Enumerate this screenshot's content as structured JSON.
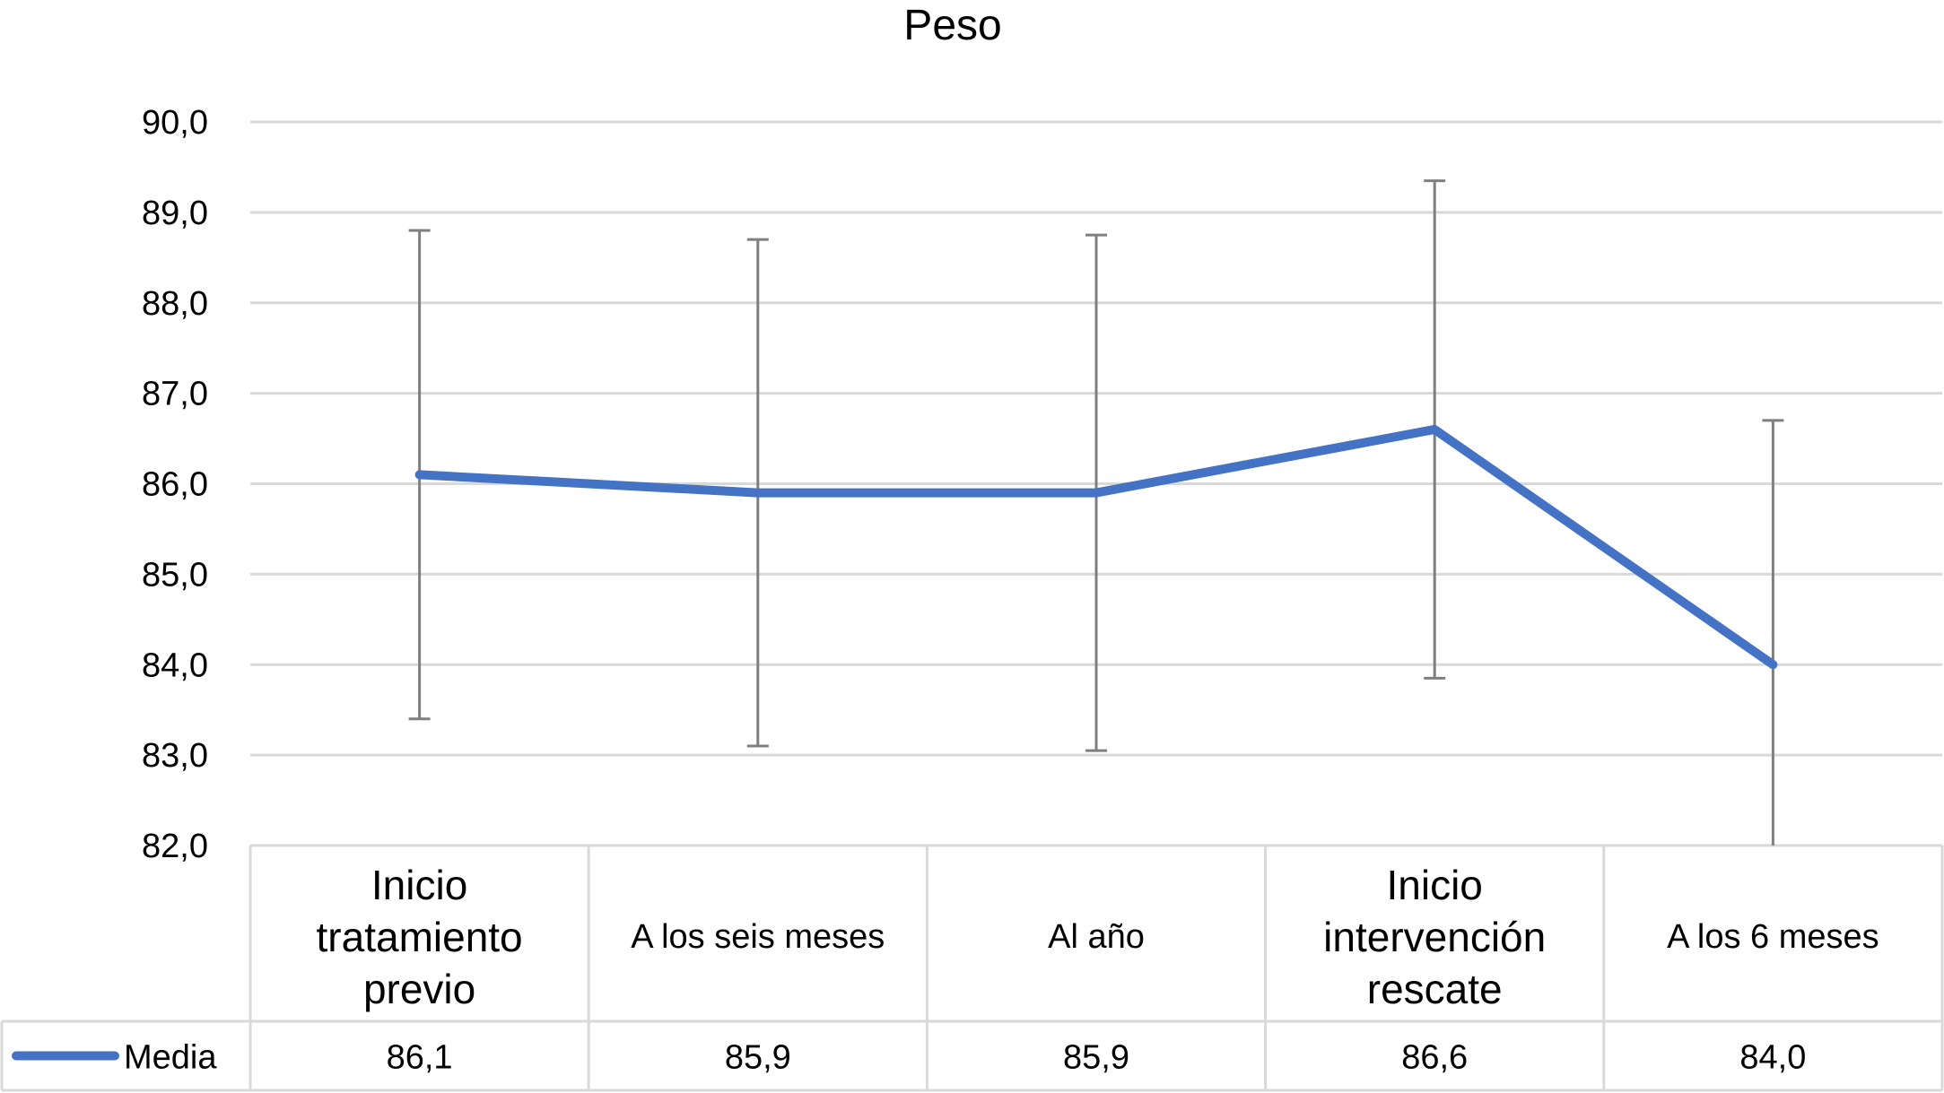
{
  "chart_data": {
    "type": "line",
    "title": "Peso",
    "categories": [
      [
        "Inicio",
        "tratamiento",
        "previo"
      ],
      [
        "A los seis meses"
      ],
      [
        "Al año"
      ],
      [
        "Inicio",
        "intervención",
        "rescate"
      ],
      [
        "A los 6 meses"
      ]
    ],
    "series": [
      {
        "name": "Media",
        "values": [
          86.1,
          85.9,
          85.9,
          86.6,
          84.0
        ],
        "value_labels": [
          "86,1",
          "85,9",
          "85,9",
          "86,6",
          "84,0"
        ],
        "error_low": [
          83.4,
          83.1,
          83.05,
          83.85,
          82.0
        ],
        "error_high": [
          88.8,
          88.7,
          88.75,
          89.35,
          86.7
        ],
        "color": "#4472C4"
      }
    ],
    "ylim": [
      82,
      90
    ],
    "yticks": [
      90,
      89,
      88,
      87,
      86,
      85,
      84,
      83,
      82
    ],
    "ytick_labels": [
      "90,0",
      "89,0",
      "88,0",
      "87,0",
      "86,0",
      "85,0",
      "84,0",
      "83,0",
      "82,0"
    ],
    "grid": true,
    "legend": "data-table",
    "error_bar_color": "#7f7f7f",
    "grid_color": "#d9d9d9"
  }
}
